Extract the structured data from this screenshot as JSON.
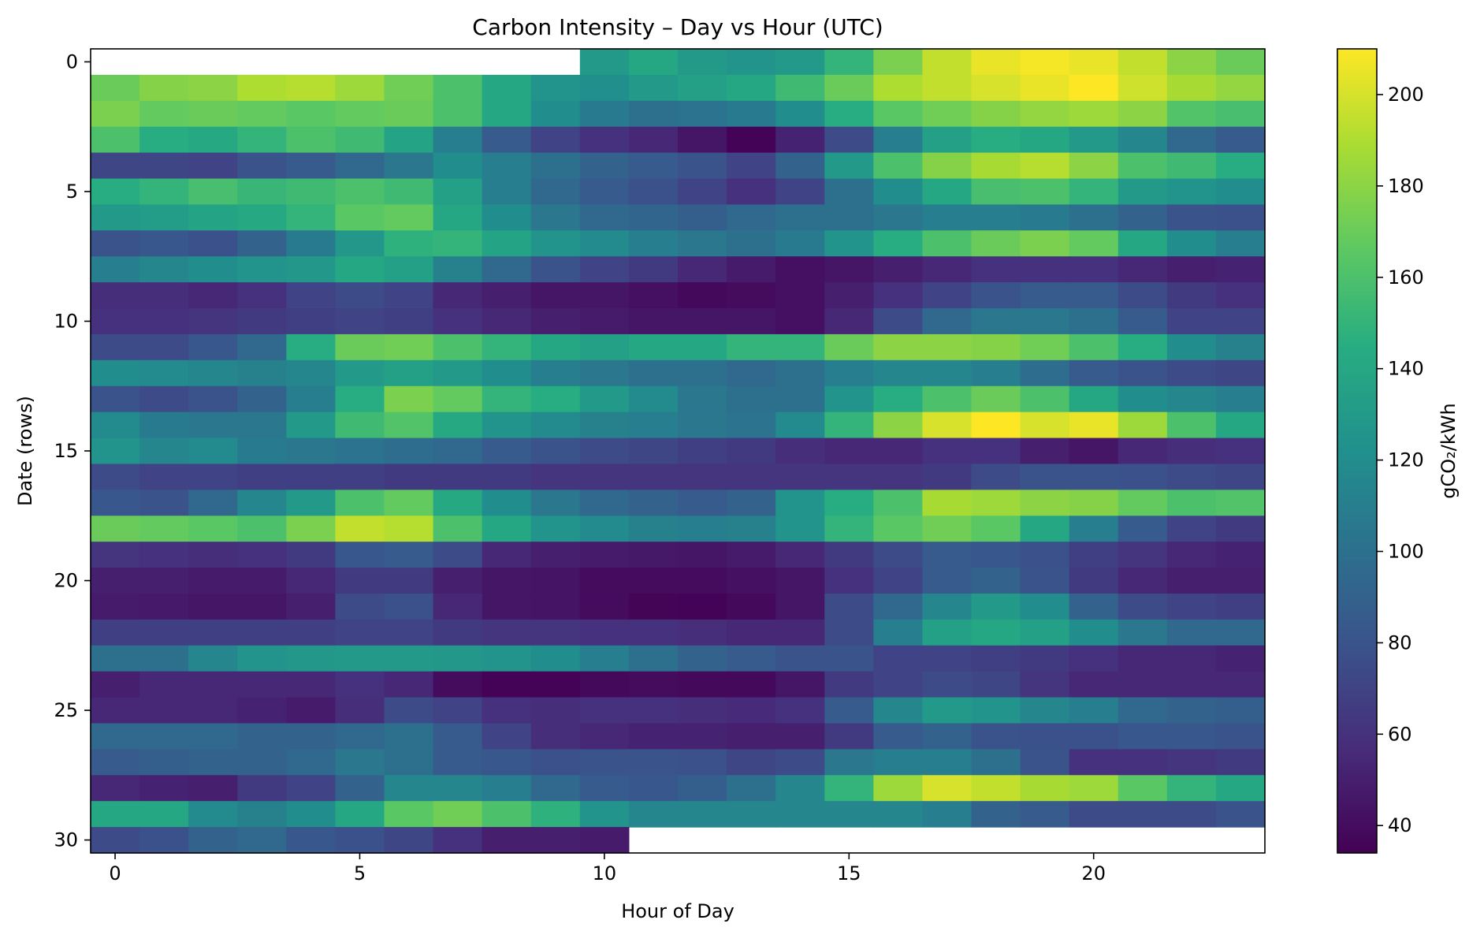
{
  "chart_data": {
    "type": "heatmap",
    "title": "Carbon Intensity – Day vs Hour (UTC)",
    "xlabel": "Hour of Day",
    "ylabel": "Date (rows)",
    "colorbar_label": "gCO₂/kWh",
    "colormap": "viridis",
    "vmin": 34,
    "vmax": 210,
    "xlim": [
      -0.5,
      23.5
    ],
    "ylim": [
      30.5,
      -0.5
    ],
    "x_ticks": [
      0,
      5,
      10,
      15,
      20
    ],
    "y_ticks": [
      0,
      5,
      10,
      15,
      20,
      25,
      30
    ],
    "colorbar_ticks": [
      40,
      60,
      80,
      100,
      120,
      140,
      160,
      180,
      200
    ],
    "hours": [
      0,
      1,
      2,
      3,
      4,
      5,
      6,
      7,
      8,
      9,
      10,
      11,
      12,
      13,
      14,
      15,
      16,
      17,
      18,
      19,
      20,
      21,
      22,
      23
    ],
    "rows": [
      0,
      1,
      2,
      3,
      4,
      5,
      6,
      7,
      8,
      9,
      10,
      11,
      12,
      13,
      14,
      15,
      16,
      17,
      18,
      19,
      20,
      21,
      22,
      23,
      24,
      25,
      26,
      27,
      28,
      29,
      30
    ],
    "values": [
      [
        null,
        null,
        null,
        null,
        null,
        null,
        null,
        null,
        null,
        null,
        130,
        140,
        130,
        125,
        130,
        150,
        175,
        195,
        205,
        208,
        205,
        195,
        180,
        170
      ],
      [
        170,
        178,
        180,
        190,
        192,
        185,
        172,
        160,
        140,
        125,
        122,
        130,
        135,
        140,
        155,
        170,
        190,
        195,
        200,
        205,
        210,
        198,
        188,
        182
      ],
      [
        175,
        168,
        170,
        168,
        165,
        168,
        170,
        160,
        140,
        120,
        108,
        100,
        102,
        108,
        120,
        145,
        165,
        172,
        178,
        182,
        185,
        180,
        162,
        158
      ],
      [
        160,
        145,
        142,
        150,
        160,
        155,
        138,
        110,
        85,
        70,
        60,
        55,
        45,
        35,
        52,
        75,
        110,
        135,
        145,
        140,
        130,
        115,
        95,
        85
      ],
      [
        72,
        72,
        70,
        80,
        85,
        95,
        105,
        120,
        110,
        100,
        90,
        85,
        80,
        70,
        90,
        130,
        160,
        178,
        188,
        192,
        180,
        160,
        155,
        145
      ],
      [
        145,
        150,
        158,
        152,
        155,
        160,
        155,
        135,
        110,
        95,
        85,
        78,
        70,
        60,
        70,
        100,
        120,
        140,
        158,
        160,
        150,
        130,
        125,
        120
      ],
      [
        130,
        132,
        138,
        142,
        150,
        165,
        168,
        140,
        120,
        105,
        95,
        92,
        88,
        95,
        100,
        100,
        105,
        110,
        110,
        108,
        100,
        90,
        80,
        78
      ],
      [
        80,
        82,
        78,
        90,
        108,
        128,
        148,
        150,
        138,
        125,
        118,
        110,
        105,
        100,
        108,
        125,
        145,
        160,
        170,
        175,
        168,
        140,
        120,
        110
      ],
      [
        110,
        115,
        120,
        125,
        128,
        140,
        135,
        112,
        95,
        80,
        70,
        65,
        55,
        48,
        42,
        45,
        50,
        55,
        60,
        60,
        60,
        55,
        50,
        52
      ],
      [
        58,
        58,
        55,
        60,
        70,
        75,
        70,
        55,
        50,
        45,
        45,
        42,
        38,
        40,
        42,
        50,
        60,
        70,
        80,
        85,
        85,
        75,
        65,
        60
      ],
      [
        60,
        60,
        62,
        65,
        68,
        70,
        68,
        60,
        55,
        50,
        48,
        45,
        45,
        45,
        42,
        55,
        75,
        95,
        105,
        105,
        100,
        85,
        70,
        70
      ],
      [
        75,
        75,
        82,
        95,
        145,
        170,
        172,
        160,
        150,
        140,
        135,
        140,
        140,
        150,
        150,
        170,
        180,
        180,
        178,
        172,
        160,
        145,
        120,
        112
      ],
      [
        120,
        118,
        115,
        112,
        115,
        130,
        135,
        130,
        120,
        110,
        105,
        100,
        100,
        95,
        100,
        110,
        115,
        115,
        110,
        98,
        85,
        80,
        75,
        72
      ],
      [
        80,
        75,
        80,
        90,
        110,
        145,
        175,
        168,
        150,
        145,
        130,
        118,
        105,
        100,
        100,
        125,
        145,
        160,
        170,
        160,
        140,
        120,
        115,
        110
      ],
      [
        118,
        108,
        105,
        105,
        130,
        155,
        162,
        142,
        125,
        118,
        112,
        110,
        105,
        102,
        118,
        150,
        180,
        200,
        210,
        200,
        205,
        185,
        160,
        140
      ],
      [
        125,
        115,
        118,
        108,
        105,
        102,
        98,
        95,
        85,
        80,
        75,
        72,
        68,
        65,
        58,
        55,
        55,
        60,
        60,
        50,
        45,
        55,
        58,
        60
      ],
      [
        75,
        70,
        70,
        68,
        68,
        68,
        65,
        65,
        65,
        62,
        62,
        62,
        62,
        62,
        62,
        62,
        62,
        65,
        75,
        80,
        80,
        78,
        75,
        72
      ],
      [
        82,
        80,
        95,
        115,
        130,
        160,
        168,
        142,
        120,
        105,
        95,
        90,
        85,
        90,
        125,
        145,
        160,
        188,
        185,
        180,
        178,
        168,
        160,
        162
      ],
      [
        170,
        168,
        165,
        160,
        175,
        195,
        192,
        160,
        140,
        125,
        118,
        112,
        110,
        112,
        125,
        150,
        165,
        172,
        165,
        140,
        110,
        85,
        70,
        65
      ],
      [
        62,
        60,
        58,
        60,
        65,
        82,
        85,
        75,
        55,
        50,
        48,
        46,
        45,
        48,
        55,
        65,
        75,
        85,
        82,
        78,
        68,
        62,
        55,
        52
      ],
      [
        50,
        50,
        48,
        48,
        55,
        65,
        65,
        50,
        45,
        44,
        40,
        40,
        40,
        42,
        45,
        60,
        70,
        85,
        90,
        80,
        65,
        55,
        50,
        50
      ],
      [
        48,
        47,
        45,
        45,
        50,
        75,
        78,
        55,
        45,
        44,
        40,
        36,
        35,
        38,
        45,
        75,
        95,
        115,
        130,
        120,
        90,
        75,
        70,
        68
      ],
      [
        68,
        68,
        68,
        68,
        68,
        70,
        70,
        65,
        62,
        62,
        60,
        60,
        58,
        55,
        55,
        75,
        110,
        135,
        140,
        135,
        120,
        105,
        95,
        95
      ],
      [
        100,
        100,
        115,
        125,
        128,
        130,
        130,
        128,
        125,
        120,
        110,
        100,
        90,
        85,
        80,
        80,
        70,
        70,
        68,
        65,
        60,
        55,
        55,
        52
      ],
      [
        50,
        55,
        55,
        55,
        55,
        60,
        55,
        40,
        35,
        35,
        38,
        40,
        38,
        38,
        45,
        65,
        70,
        75,
        72,
        62,
        55,
        55,
        55,
        55
      ],
      [
        55,
        55,
        55,
        52,
        48,
        58,
        75,
        70,
        60,
        58,
        60,
        60,
        58,
        56,
        60,
        85,
        115,
        130,
        125,
        115,
        110,
        95,
        90,
        88
      ],
      [
        95,
        95,
        95,
        90,
        90,
        95,
        100,
        85,
        70,
        58,
        55,
        52,
        52,
        50,
        50,
        65,
        85,
        90,
        80,
        78,
        78,
        82,
        82,
        80
      ],
      [
        85,
        88,
        90,
        90,
        95,
        105,
        100,
        85,
        82,
        78,
        80,
        80,
        78,
        72,
        75,
        105,
        110,
        110,
        100,
        80,
        60,
        60,
        62,
        65
      ],
      [
        55,
        52,
        50,
        65,
        70,
        90,
        115,
        115,
        110,
        95,
        85,
        82,
        88,
        100,
        115,
        150,
        185,
        200,
        195,
        188,
        185,
        165,
        150,
        140
      ],
      [
        140,
        140,
        118,
        112,
        120,
        140,
        165,
        172,
        160,
        148,
        125,
        115,
        115,
        115,
        115,
        115,
        115,
        110,
        90,
        85,
        75,
        75,
        75,
        80
      ],
      [
        75,
        78,
        90,
        95,
        82,
        78,
        72,
        60,
        50,
        50,
        48,
        null,
        null,
        null,
        null,
        null,
        null,
        null,
        null,
        null,
        null,
        null,
        null,
        null
      ]
    ]
  }
}
